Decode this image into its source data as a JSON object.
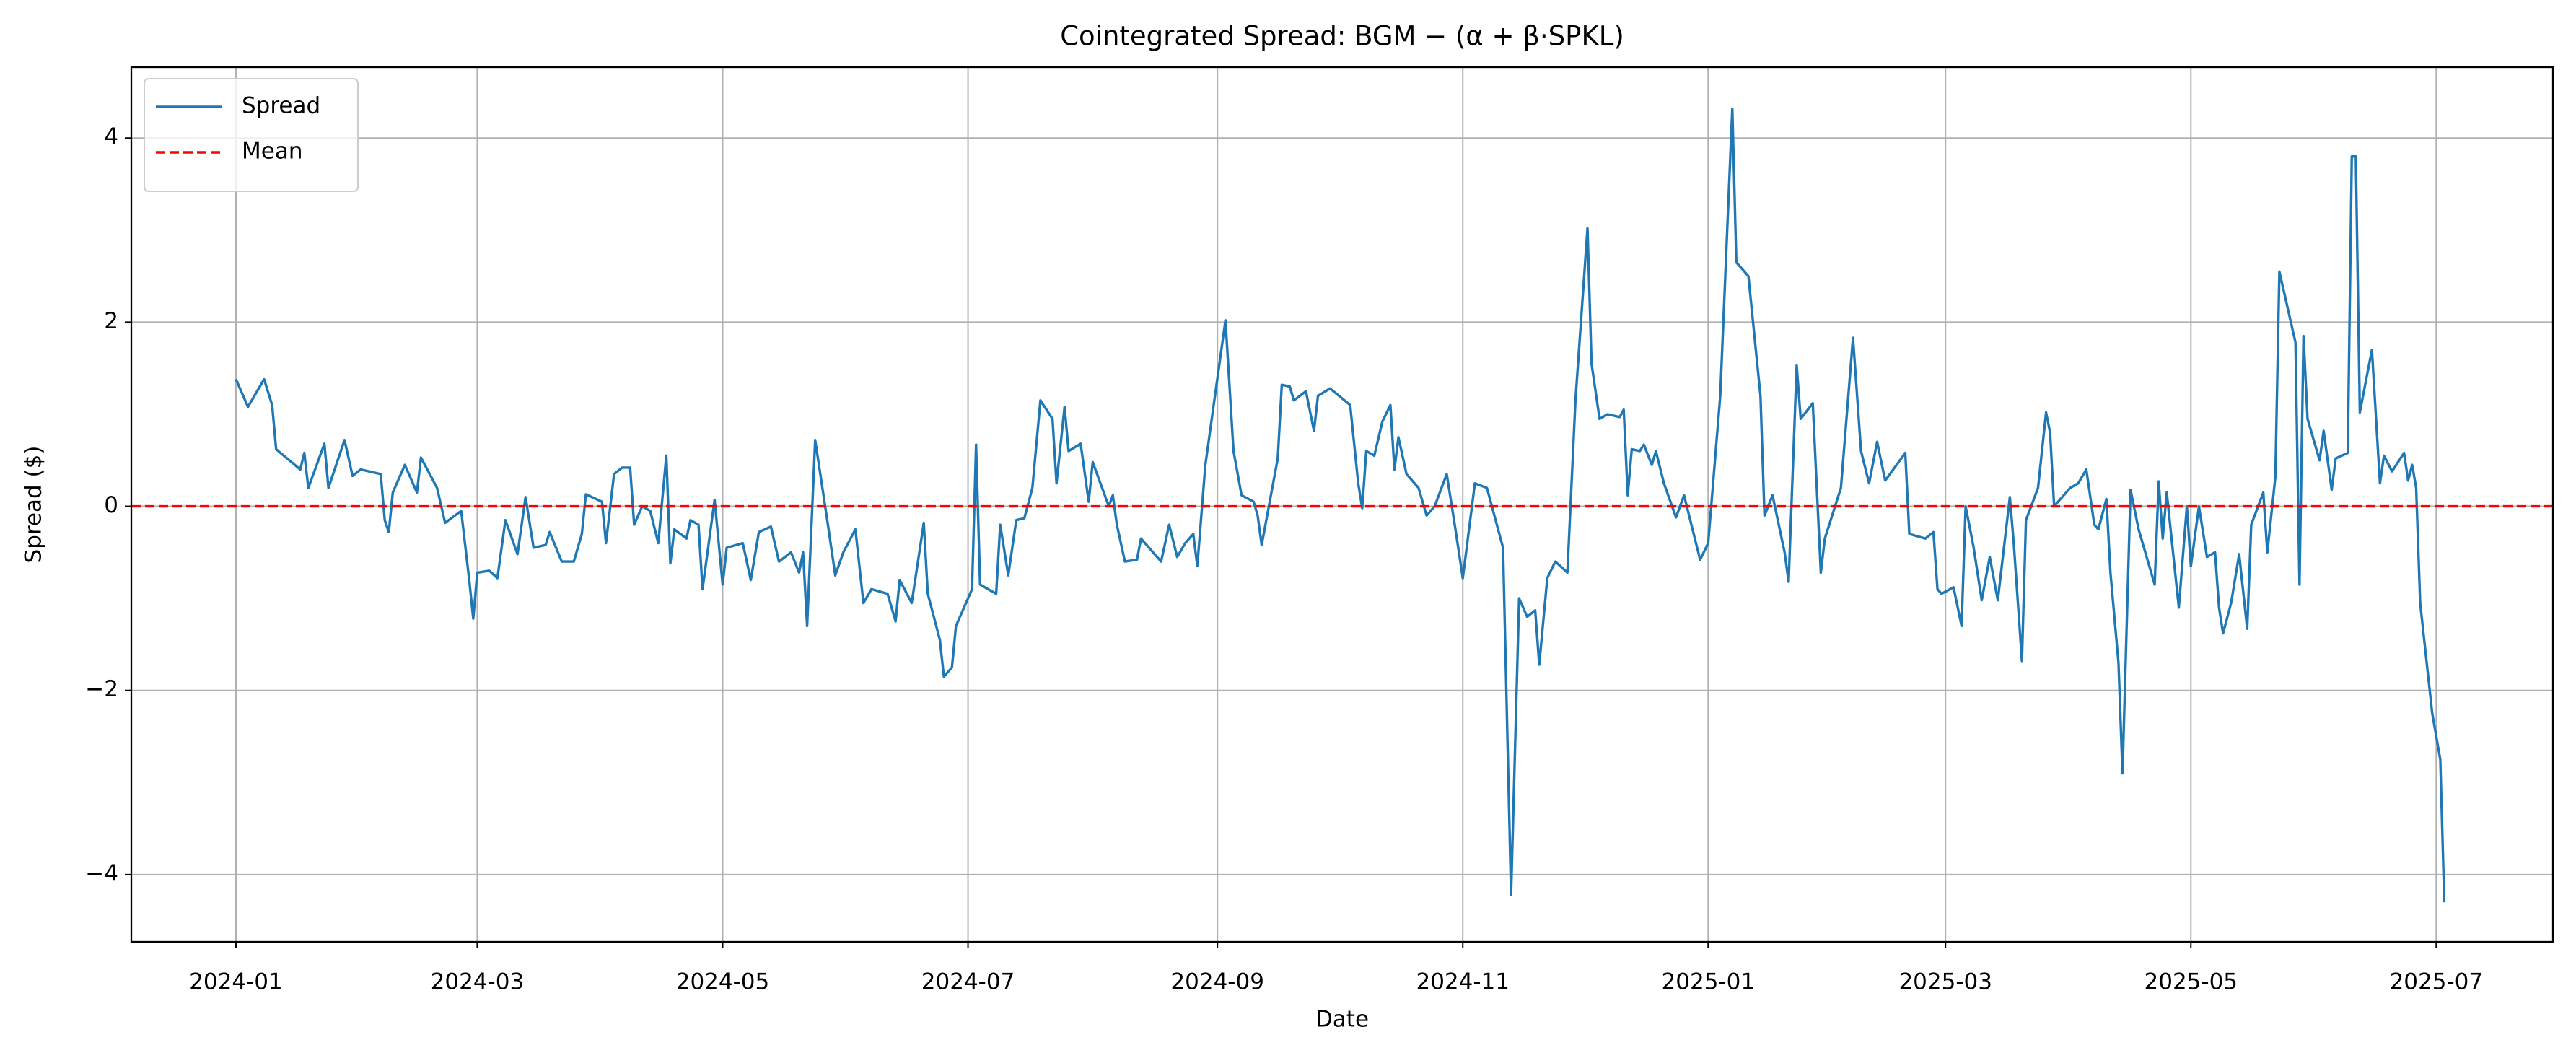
{
  "chart_data": {
    "type": "line",
    "title": "Cointegrated Spread: BGM − (α + β·SPKL)",
    "xlabel": "Date",
    "ylabel": "Spread ($)",
    "x": [
      19723,
      19726,
      19730,
      19732,
      19733,
      19739,
      19740,
      19741,
      19745,
      19746,
      19750,
      19752,
      19754,
      19759,
      19760,
      19761,
      19762,
      19765,
      19767,
      19768,
      19769,
      19773,
      19775,
      19779,
      19781,
      19782,
      19783,
      19786,
      19788,
      19790,
      19793,
      19795,
      19797,
      19800,
      19801,
      19804,
      19807,
      19809,
      19810,
      19814,
      19815,
      19817,
      19819,
      19821,
      19822,
      19824,
      19826,
      19828,
      19830,
      19831,
      19832,
      19835,
      19836,
      19838,
      19839,
      19842,
      19844,
      19845,
      19849,
      19851,
      19853,
      19856,
      19858,
      19861,
      19863,
      19864,
      19865,
      19867,
      19870,
      19872,
      19874,
      19877,
      19879,
      19881,
      19885,
      19887,
      19888,
      19891,
      19894,
      19895,
      19898,
      19899,
      19901,
      19902,
      19906,
      19907,
      19908,
      19912,
      19913,
      19915,
      19917,
      19919,
      19921,
      19923,
      19926,
      19927,
      19929,
      19930,
      19933,
      19935,
      19936,
      19940,
      19941,
      19942,
      19944,
      19947,
      19948,
      19951,
      19953,
      19955,
      19957,
      19959,
      19961,
      19962,
      19964,
      19969,
      19971,
      19973,
      19976,
      19977,
      19978,
      19980,
      19982,
      19983,
      19985,
      19986,
      19989,
      19991,
      19992,
      19995,
      20000,
      20002,
      20003,
      20004,
      20006,
      20008,
      20010,
      20011,
      20012,
      20014,
      20017,
      20019,
      20021,
      20024,
      20026,
      20028,
      20031,
      20034,
      20038,
      20040,
      20042,
      20044,
      20046,
      20047,
      20049,
      20051,
      20054,
      20056,
      20059,
      20060,
      20062,
      20064,
      20067,
      20068,
      20069,
      20070,
      20072,
      20073,
      20075,
      20076,
      20078,
      20081,
      20083,
      20087,
      20089,
      20092,
      20095,
      20096,
      20099,
      20102,
      20103,
      20105,
      20108,
      20109,
      20111,
      20112,
      20115,
      20117,
      20118,
      20122,
      20125,
      20127,
      20129,
      20131,
      20133,
      20138,
      20139,
      20143,
      20145,
      20146,
      20147,
      20150,
      20152,
      20153,
      20155,
      20157,
      20159,
      20161,
      20164,
      20165,
      20167,
      20168,
      20171,
      20173,
      20174,
      20175,
      20179,
      20181,
      20183,
      20185,
      20186,
      20188,
      20189,
      20191,
      20192,
      20194,
      20196,
      20200,
      20201,
      20202,
      20203,
      20206,
      20208,
      20209,
      20211,
      20213,
      20215,
      20216,
      20217,
      20219,
      20221,
      20223,
      20224,
      20227,
      20228,
      20230,
      20231,
      20235,
      20236,
      20237,
      20238,
      20241,
      20242,
      20244,
      20245,
      20248,
      20249,
      20250,
      20251,
      20254,
      20256,
      20257,
      20259,
      20262,
      20263,
      20264,
      20265,
      20266,
      20269,
      20271,
      20272
    ],
    "series": [
      {
        "name": "Spread",
        "color": "#1f77b4",
        "values": [
          1.38,
          1.08,
          1.38,
          1.1,
          0.62,
          0.4,
          0.58,
          0.2,
          0.68,
          0.2,
          0.72,
          0.33,
          0.4,
          0.35,
          -0.15,
          -0.28,
          0.15,
          0.45,
          0.25,
          0.15,
          0.53,
          0.2,
          -0.18,
          -0.05,
          -0.8,
          -1.22,
          -0.72,
          -0.7,
          -0.78,
          -0.15,
          -0.52,
          0.1,
          -0.45,
          -0.42,
          -0.28,
          -0.6,
          -0.6,
          -0.3,
          0.13,
          0.05,
          -0.4,
          0.35,
          0.42,
          0.42,
          -0.2,
          0.0,
          -0.05,
          -0.4,
          0.55,
          -0.62,
          -0.25,
          -0.35,
          -0.15,
          -0.2,
          -0.9,
          0.07,
          -0.85,
          -0.45,
          -0.4,
          -0.8,
          -0.28,
          -0.22,
          -0.6,
          -0.5,
          -0.72,
          -0.5,
          -1.3,
          0.72,
          -0.15,
          -0.75,
          -0.5,
          -0.25,
          -1.05,
          -0.9,
          -0.95,
          -1.25,
          -0.8,
          -1.05,
          -0.18,
          -0.95,
          -1.45,
          -1.85,
          -1.75,
          -1.3,
          -0.9,
          0.67,
          -0.85,
          -0.95,
          -0.2,
          -0.75,
          -0.15,
          -0.13,
          0.2,
          1.15,
          0.95,
          0.25,
          1.08,
          0.6,
          0.68,
          0.05,
          0.48,
          0.0,
          0.12,
          -0.2,
          -0.6,
          -0.58,
          -0.35,
          -0.5,
          -0.6,
          -0.2,
          -0.55,
          -0.4,
          -0.3,
          -0.65,
          0.45,
          2.02,
          0.6,
          0.12,
          0.05,
          -0.1,
          -0.42,
          0.05,
          0.52,
          1.32,
          1.3,
          1.15,
          1.25,
          0.82,
          1.2,
          1.28,
          1.1,
          0.25,
          -0.02,
          0.6,
          0.55,
          0.92,
          1.1,
          0.4,
          0.75,
          0.35,
          0.2,
          -0.1,
          0.0,
          0.35,
          -0.2,
          -0.78,
          0.25,
          0.2,
          -0.45,
          -4.22,
          -1.0,
          -1.2,
          -1.13,
          -1.72,
          -0.78,
          -0.6,
          -0.72,
          1.15,
          3.02,
          1.55,
          0.95,
          1.0,
          0.97,
          1.05,
          0.12,
          0.62,
          0.6,
          0.67,
          0.45,
          0.6,
          0.25,
          -0.12,
          0.12,
          -0.58,
          -0.4,
          1.2,
          4.32,
          2.65,
          2.5,
          1.2,
          -0.1,
          0.12,
          -0.5,
          -0.82,
          1.53,
          0.95,
          1.12,
          -0.72,
          -0.35,
          0.2,
          1.83,
          0.6,
          0.25,
          0.7,
          0.28,
          0.58,
          -0.3,
          -0.35,
          -0.28,
          -0.9,
          -0.95,
          -0.88,
          -1.3,
          0.0,
          -0.45,
          -1.02,
          -0.55,
          -1.02,
          0.1,
          -0.42,
          -1.68,
          -0.15,
          0.2,
          1.02,
          0.8,
          0.0,
          0.2,
          0.25,
          0.4,
          -0.2,
          -0.25,
          0.08,
          -0.72,
          -1.7,
          -2.9,
          0.18,
          -0.25,
          -0.85,
          0.27,
          -0.35,
          0.15,
          -1.1,
          0.0,
          -0.65,
          0.0,
          -0.55,
          -0.5,
          -1.1,
          -1.38,
          -1.05,
          -0.52,
          -1.33,
          -0.2,
          0.15,
          -0.5,
          0.32,
          2.55,
          1.78,
          -0.85,
          1.85,
          0.95,
          0.5,
          0.82,
          0.18,
          0.52,
          0.58,
          3.8,
          3.8,
          1.02,
          1.7,
          0.25,
          0.55,
          0.38,
          0.58,
          0.28,
          0.45,
          0.2,
          -1.05,
          -2.25,
          -2.75,
          -4.3
        ]
      }
    ],
    "hlines": [
      {
        "name": "Mean",
        "value": 0,
        "color": "#ff0000",
        "style": "dashed"
      }
    ],
    "xlim": [
      19697,
      20299
    ],
    "xticks": [
      {
        "value": 19723,
        "label": "2024-01"
      },
      {
        "value": 19783,
        "label": "2024-03"
      },
      {
        "value": 19844,
        "label": "2024-05"
      },
      {
        "value": 19905,
        "label": "2024-07"
      },
      {
        "value": 19967,
        "label": "2024-09"
      },
      {
        "value": 20028,
        "label": "2024-11"
      },
      {
        "value": 20089,
        "label": "2025-01"
      },
      {
        "value": 20148,
        "label": "2025-03"
      },
      {
        "value": 20209,
        "label": "2025-05"
      },
      {
        "value": 20270,
        "label": "2025-07"
      }
    ],
    "ylim": [
      -4.73,
      4.77
    ],
    "yticks": [
      {
        "value": -4,
        "label": "−4"
      },
      {
        "value": -2,
        "label": "−2"
      },
      0,
      2,
      4
    ],
    "grid": true,
    "legend": "upper left"
  }
}
